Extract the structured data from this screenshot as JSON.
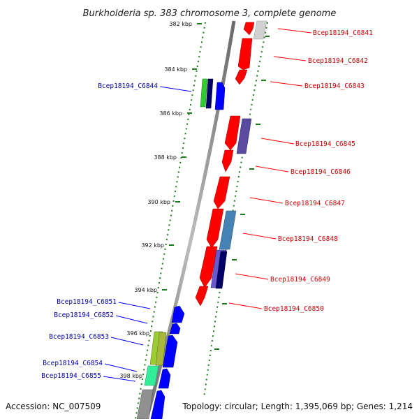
{
  "title": "Burkholderia sp. 383 chromosome 3, complete genome",
  "footer": {
    "accession": "Accession: NC_007509",
    "summary": "Topology: circular; Length: 1,395,069 bp; Genes: 1,214"
  },
  "colors": {
    "forward_gene": "#ff0000",
    "reverse_gene": "#0000ff",
    "forward_label": "#cc0000",
    "reverse_label": "#0000aa",
    "backbone": "#808080",
    "ruler_ticks": "#1a7a1a"
  },
  "ruler": {
    "ticks": [
      {
        "label": "382 kbp"
      },
      {
        "label": "384 kbp"
      },
      {
        "label": "386 kbp"
      },
      {
        "label": "388 kbp"
      },
      {
        "label": "390 kbp"
      },
      {
        "label": "392 kbp"
      },
      {
        "label": "394 kbp"
      },
      {
        "label": "396 kbp"
      },
      {
        "label": "398 kbp"
      }
    ]
  },
  "gene_labels": {
    "forward": [
      "Bcep18194_C6841",
      "Bcep18194_C6842",
      "Bcep18194_C6843",
      "Bcep18194_C6845",
      "Bcep18194_C6846",
      "Bcep18194_C6847",
      "Bcep18194_C6848",
      "Bcep18194_C6849",
      "Bcep18194_C6850"
    ],
    "reverse": [
      "Bcep18194_C6844",
      "Bcep18194_C6851",
      "Bcep18194_C6852",
      "Bcep18194_C6853",
      "Bcep18194_C6854",
      "Bcep18194_C6855"
    ]
  }
}
